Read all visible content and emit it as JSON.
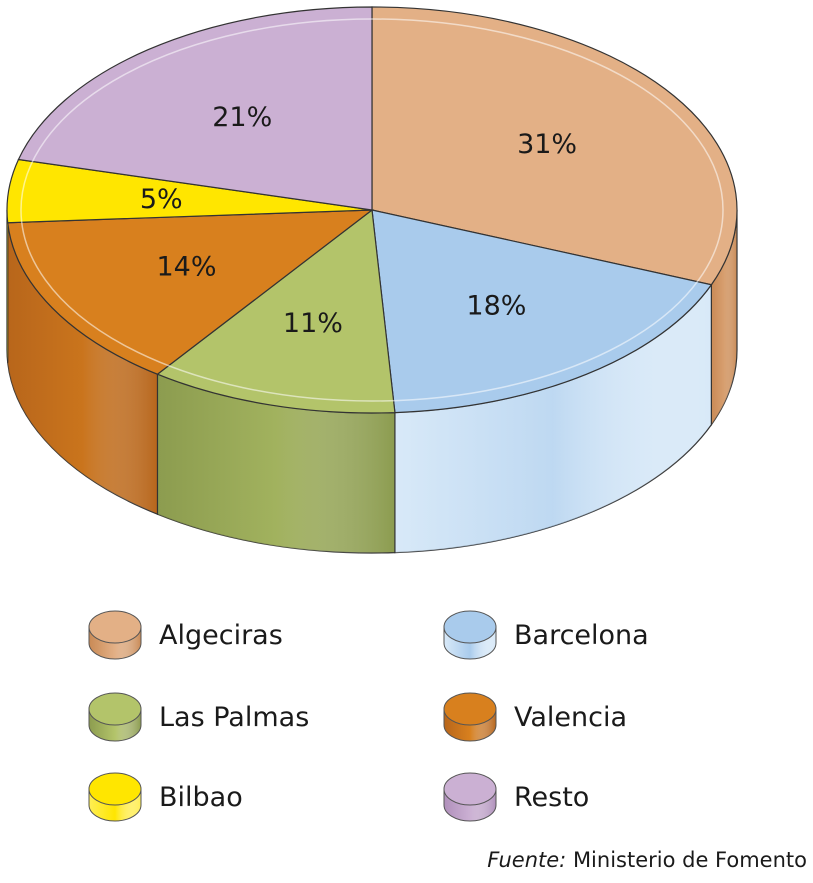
{
  "chart_data": {
    "type": "pie",
    "categories": [
      "Algeciras",
      "Barcelona",
      "Las Palmas",
      "Valencia",
      "Bilbao",
      "Resto"
    ],
    "values": [
      31,
      18,
      11,
      14,
      5,
      21
    ],
    "value_labels": [
      "31%",
      "18%",
      "11%",
      "14%",
      "5%",
      "21%"
    ],
    "colors": [
      "#e3b086",
      "#a9cbec",
      "#b3c46a",
      "#d8801e",
      "#ffe600",
      "#cbb0d3"
    ],
    "side_colors": [
      "#c98a55",
      "#d8e9f8",
      "#8c9c4f",
      "#b8661b",
      "#ffee55",
      "#b090bb"
    ],
    "legend_placement": "bottom",
    "title": ""
  },
  "source": {
    "label": "Fuente:",
    "text": "Ministerio de Fomento"
  }
}
